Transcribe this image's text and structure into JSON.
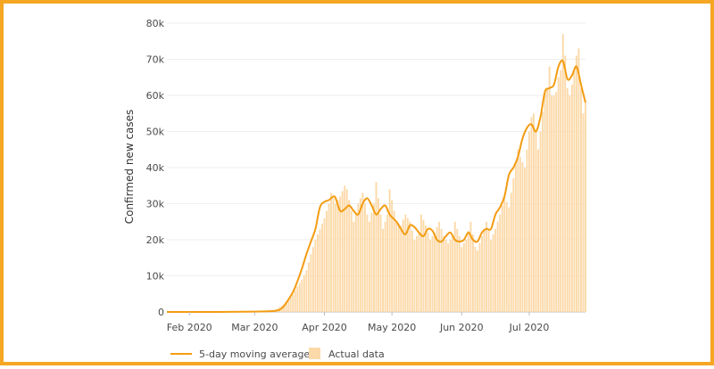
{
  "chart_data": {
    "type": "bar",
    "title": "",
    "ylabel": "Confirmed new cases",
    "xlabel": "",
    "ylim": [
      0,
      80000
    ],
    "y_ticks": [
      0,
      10000,
      20000,
      30000,
      40000,
      50000,
      60000,
      70000,
      80000
    ],
    "y_tick_labels": [
      "0",
      "10k",
      "20k",
      "30k",
      "40k",
      "50k",
      "60k",
      "70k",
      "80k"
    ],
    "x_ticks": [
      {
        "label": "Feb 2020",
        "date": "2020-02-01"
      },
      {
        "label": "Mar 2020",
        "date": "2020-03-01"
      },
      {
        "label": "Apr 2020",
        "date": "2020-04-01"
      },
      {
        "label": "May 2020",
        "date": "2020-05-01"
      },
      {
        "label": "Jun 2020",
        "date": "2020-06-01"
      },
      {
        "label": "Jul 2020",
        "date": "2020-07-01"
      }
    ],
    "x_range": [
      "2020-01-22",
      "2020-07-26"
    ],
    "grid": true,
    "legend_position": "bottom",
    "series": [
      {
        "name": "Actual data",
        "kind": "bar",
        "color": "#fcd9a8",
        "points": [
          [
            "2020-01-22",
            0
          ],
          [
            "2020-02-15",
            0
          ],
          [
            "2020-02-28",
            50
          ],
          [
            "2020-03-05",
            150
          ],
          [
            "2020-03-10",
            500
          ],
          [
            "2020-03-15",
            2500
          ],
          [
            "2020-03-18",
            5000
          ],
          [
            "2020-03-20",
            7000
          ],
          [
            "2020-03-22",
            9000
          ],
          [
            "2020-03-24",
            11500
          ],
          [
            "2020-03-26",
            16000
          ],
          [
            "2020-03-28",
            20000
          ],
          [
            "2020-03-30",
            23000
          ],
          [
            "2020-04-01",
            26000
          ],
          [
            "2020-04-03",
            30000
          ],
          [
            "2020-04-04",
            33000
          ],
          [
            "2020-04-06",
            30000
          ],
          [
            "2020-04-08",
            32000
          ],
          [
            "2020-04-10",
            35000
          ],
          [
            "2020-04-11",
            34000
          ],
          [
            "2020-04-13",
            28000
          ],
          [
            "2020-04-14",
            25000
          ],
          [
            "2020-04-16",
            30000
          ],
          [
            "2020-04-18",
            33000
          ],
          [
            "2020-04-20",
            27000
          ],
          [
            "2020-04-21",
            25000
          ],
          [
            "2020-04-23",
            30000
          ],
          [
            "2020-04-24",
            36000
          ],
          [
            "2020-04-26",
            27000
          ],
          [
            "2020-04-27",
            23000
          ],
          [
            "2020-04-29",
            27000
          ],
          [
            "2020-04-30",
            34000
          ],
          [
            "2020-05-02",
            28000
          ],
          [
            "2020-05-03",
            25000
          ],
          [
            "2020-05-05",
            24000
          ],
          [
            "2020-05-07",
            27000
          ],
          [
            "2020-05-09",
            25000
          ],
          [
            "2020-05-11",
            20000
          ],
          [
            "2020-05-13",
            22000
          ],
          [
            "2020-05-14",
            27000
          ],
          [
            "2020-05-16",
            24000
          ],
          [
            "2020-05-18",
            20000
          ],
          [
            "2020-05-20",
            22000
          ],
          [
            "2020-05-22",
            25000
          ],
          [
            "2020-05-24",
            21000
          ],
          [
            "2020-05-26",
            19000
          ],
          [
            "2020-05-28",
            21000
          ],
          [
            "2020-05-29",
            25000
          ],
          [
            "2020-05-31",
            21000
          ],
          [
            "2020-06-01",
            18000
          ],
          [
            "2020-06-03",
            20000
          ],
          [
            "2020-06-05",
            25000
          ],
          [
            "2020-06-07",
            18000
          ],
          [
            "2020-06-08",
            17000
          ],
          [
            "2020-06-10",
            21000
          ],
          [
            "2020-06-12",
            25000
          ],
          [
            "2020-06-14",
            20000
          ],
          [
            "2020-06-16",
            23000
          ],
          [
            "2020-06-18",
            27000
          ],
          [
            "2020-06-20",
            32000
          ],
          [
            "2020-06-22",
            29000
          ],
          [
            "2020-06-24",
            37000
          ],
          [
            "2020-06-26",
            45000
          ],
          [
            "2020-06-27",
            43000
          ],
          [
            "2020-06-29",
            40000
          ],
          [
            "2020-07-01",
            50000
          ],
          [
            "2020-07-02",
            54000
          ],
          [
            "2020-07-03",
            55000
          ],
          [
            "2020-07-05",
            45000
          ],
          [
            "2020-07-06",
            50000
          ],
          [
            "2020-07-08",
            61000
          ],
          [
            "2020-07-09",
            62000
          ],
          [
            "2020-07-10",
            68000
          ],
          [
            "2020-07-11",
            60000
          ],
          [
            "2020-07-12",
            60000
          ],
          [
            "2020-07-13",
            61000
          ],
          [
            "2020-07-14",
            65000
          ],
          [
            "2020-07-15",
            67000
          ],
          [
            "2020-07-16",
            77000
          ],
          [
            "2020-07-17",
            71000
          ],
          [
            "2020-07-18",
            62000
          ],
          [
            "2020-07-19",
            60000
          ],
          [
            "2020-07-20",
            63000
          ],
          [
            "2020-07-21",
            67000
          ],
          [
            "2020-07-22",
            71000
          ],
          [
            "2020-07-23",
            73000
          ],
          [
            "2020-07-24",
            62000
          ],
          [
            "2020-07-25",
            55000
          ],
          [
            "2020-07-26",
            58000
          ]
        ]
      },
      {
        "name": "5-day moving average",
        "kind": "line",
        "color": "#f39c12",
        "points": [
          [
            "2020-01-22",
            0
          ],
          [
            "2020-02-15",
            0
          ],
          [
            "2020-03-01",
            100
          ],
          [
            "2020-03-10",
            300
          ],
          [
            "2020-03-13",
            1000
          ],
          [
            "2020-03-15",
            2500
          ],
          [
            "2020-03-18",
            5500
          ],
          [
            "2020-03-20",
            8500
          ],
          [
            "2020-03-22",
            12000
          ],
          [
            "2020-03-24",
            16000
          ],
          [
            "2020-03-26",
            19500
          ],
          [
            "2020-03-28",
            23000
          ],
          [
            "2020-03-30",
            29000
          ],
          [
            "2020-04-01",
            30500
          ],
          [
            "2020-04-03",
            31000
          ],
          [
            "2020-04-05",
            32000
          ],
          [
            "2020-04-06",
            31500
          ],
          [
            "2020-04-08",
            28000
          ],
          [
            "2020-04-10",
            28500
          ],
          [
            "2020-04-12",
            29500
          ],
          [
            "2020-04-14",
            28000
          ],
          [
            "2020-04-16",
            27000
          ],
          [
            "2020-04-18",
            30000
          ],
          [
            "2020-04-20",
            31500
          ],
          [
            "2020-04-22",
            29500
          ],
          [
            "2020-04-24",
            27000
          ],
          [
            "2020-04-26",
            28500
          ],
          [
            "2020-04-28",
            29500
          ],
          [
            "2020-04-30",
            27000
          ],
          [
            "2020-05-03",
            25000
          ],
          [
            "2020-05-05",
            23000
          ],
          [
            "2020-05-07",
            21500
          ],
          [
            "2020-05-09",
            24000
          ],
          [
            "2020-05-11",
            23500
          ],
          [
            "2020-05-13",
            22000
          ],
          [
            "2020-05-15",
            21000
          ],
          [
            "2020-05-17",
            23000
          ],
          [
            "2020-05-19",
            22500
          ],
          [
            "2020-05-21",
            20000
          ],
          [
            "2020-05-23",
            19500
          ],
          [
            "2020-05-25",
            21000
          ],
          [
            "2020-05-27",
            22000
          ],
          [
            "2020-05-29",
            20000
          ],
          [
            "2020-05-31",
            19500
          ],
          [
            "2020-06-02",
            20000
          ],
          [
            "2020-06-04",
            22000
          ],
          [
            "2020-06-06",
            20000
          ],
          [
            "2020-06-08",
            19500
          ],
          [
            "2020-06-10",
            22000
          ],
          [
            "2020-06-12",
            23000
          ],
          [
            "2020-06-14",
            23000
          ],
          [
            "2020-06-16",
            27000
          ],
          [
            "2020-06-18",
            29000
          ],
          [
            "2020-06-20",
            32000
          ],
          [
            "2020-06-22",
            38000
          ],
          [
            "2020-06-24",
            40000
          ],
          [
            "2020-06-26",
            43000
          ],
          [
            "2020-06-28",
            48000
          ],
          [
            "2020-06-30",
            51000
          ],
          [
            "2020-07-02",
            52000
          ],
          [
            "2020-07-04",
            50000
          ],
          [
            "2020-07-06",
            54000
          ],
          [
            "2020-07-08",
            61000
          ],
          [
            "2020-07-10",
            62000
          ],
          [
            "2020-07-12",
            63000
          ],
          [
            "2020-07-14",
            68000
          ],
          [
            "2020-07-16",
            69500
          ],
          [
            "2020-07-18",
            64500
          ],
          [
            "2020-07-20",
            65500
          ],
          [
            "2020-07-22",
            68000
          ],
          [
            "2020-07-24",
            63000
          ],
          [
            "2020-07-26",
            58000
          ]
        ]
      }
    ]
  }
}
